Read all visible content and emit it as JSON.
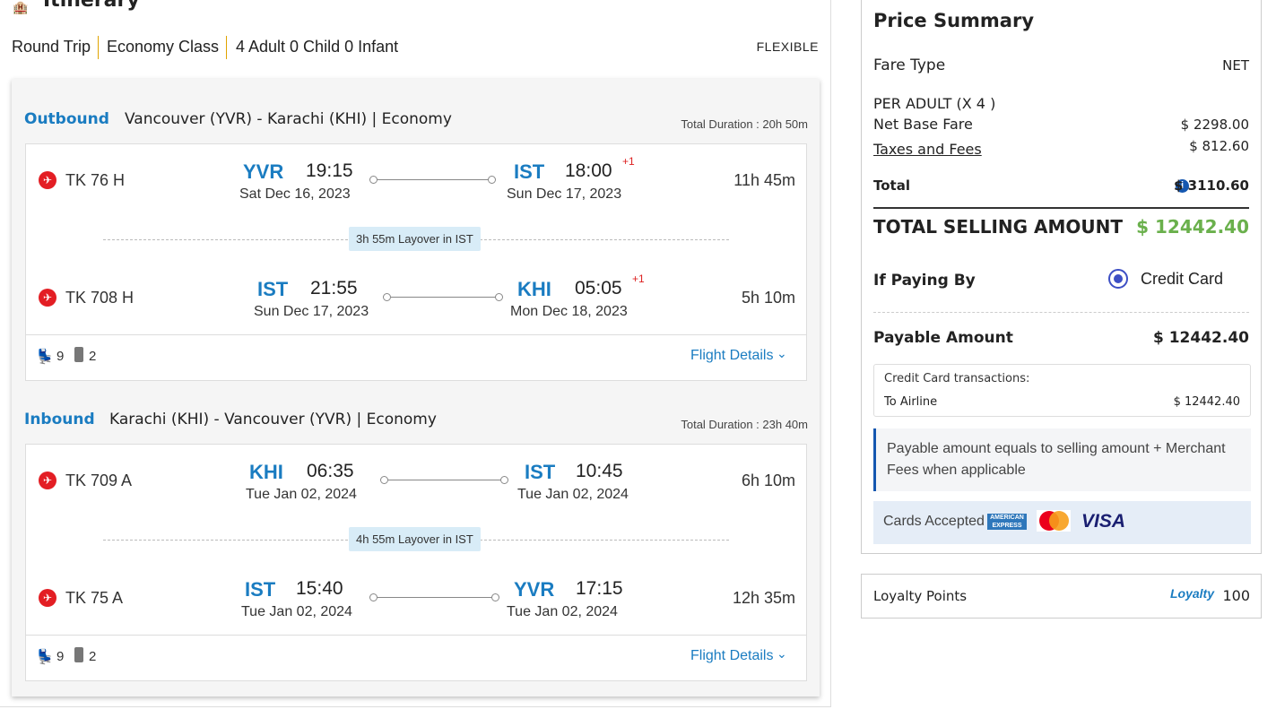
{
  "itinerary": {
    "title": "Itinerary",
    "icon": "itinerary-icon",
    "trip_type": "Round Trip",
    "cabin": "Economy Class",
    "passengers": "4 Adult 0 Child 0 Infant",
    "fare_flag": "FLEXIBLE"
  },
  "journeys": [
    {
      "direction": "Outbound",
      "route": "Vancouver (YVR) - Karachi (KHI) | Economy",
      "total_duration": "Total Duration : 20h 50m",
      "segments": [
        {
          "flight": "TK 76 H",
          "from_code": "YVR",
          "from_time": "19:15",
          "from_date": "Sat Dec 16, 2023",
          "to_code": "IST",
          "to_time": "18:00",
          "day_offset": "+1",
          "to_date": "Sun Dec 17, 2023",
          "duration": "11h 45m"
        },
        {
          "flight": "TK 708 H",
          "from_code": "IST",
          "from_time": "21:55",
          "from_date": "Sun Dec 17, 2023",
          "to_code": "KHI",
          "to_time": "05:05",
          "day_offset": "+1",
          "to_date": "Mon Dec 18, 2023",
          "duration": "5h 10m"
        }
      ],
      "layover": "3h 55m Layover in IST",
      "seats": "9",
      "bags": "2",
      "details_label": "Flight Details"
    },
    {
      "direction": "Inbound",
      "route": "Karachi (KHI) - Vancouver (YVR) | Economy",
      "total_duration": "Total Duration : 23h 40m",
      "segments": [
        {
          "flight": "TK 709 A",
          "from_code": "KHI",
          "from_time": "06:35",
          "from_date": "Tue Jan 02, 2024",
          "to_code": "IST",
          "to_time": "10:45",
          "day_offset": "",
          "to_date": "Tue Jan 02, 2024",
          "duration": "6h 10m"
        },
        {
          "flight": "TK 75 A",
          "from_code": "IST",
          "from_time": "15:40",
          "from_date": "Tue Jan 02, 2024",
          "to_code": "YVR",
          "to_time": "17:15",
          "day_offset": "",
          "to_date": "Tue Jan 02, 2024",
          "duration": "12h 35m"
        }
      ],
      "layover": "4h 55m Layover in IST",
      "seats": "9",
      "bags": "2",
      "details_label": "Flight Details"
    }
  ],
  "price": {
    "title": "Price Summary",
    "fare_type_label": "Fare Type",
    "fare_type": "NET",
    "per_adult": "PER ADULT (X 4 )",
    "net_base_label": "Net Base Fare",
    "net_base": "$ 2298.00",
    "taxes_label": "Taxes and Fees",
    "taxes": "$ 812.60",
    "total_label": "Total",
    "total": "$ 3110.60",
    "selling_label": "TOTAL SELLING AMOUNT",
    "selling": "$ 12442.40",
    "paying_by_label": "If Paying By",
    "payment_method": "Credit Card",
    "payable_label": "Payable Amount",
    "payable": "$ 12442.40",
    "cc_title": "Credit Card transactions:",
    "cc_to": "To Airline",
    "cc_amount": "$ 12442.40",
    "note": "Payable amount equals to selling amount + Merchant Fees when applicable",
    "cards_label": "Cards Accepted",
    "cards": [
      "AMERICAN EXPRESS",
      "Mastercard",
      "VISA"
    ]
  },
  "loyalty": {
    "label": "Loyalty Points",
    "logo_text": "Loyalty",
    "points": "100"
  },
  "colors": {
    "accent": "#1a7cc1",
    "green": "#6ab04c",
    "airline_red": "#e31e24"
  }
}
